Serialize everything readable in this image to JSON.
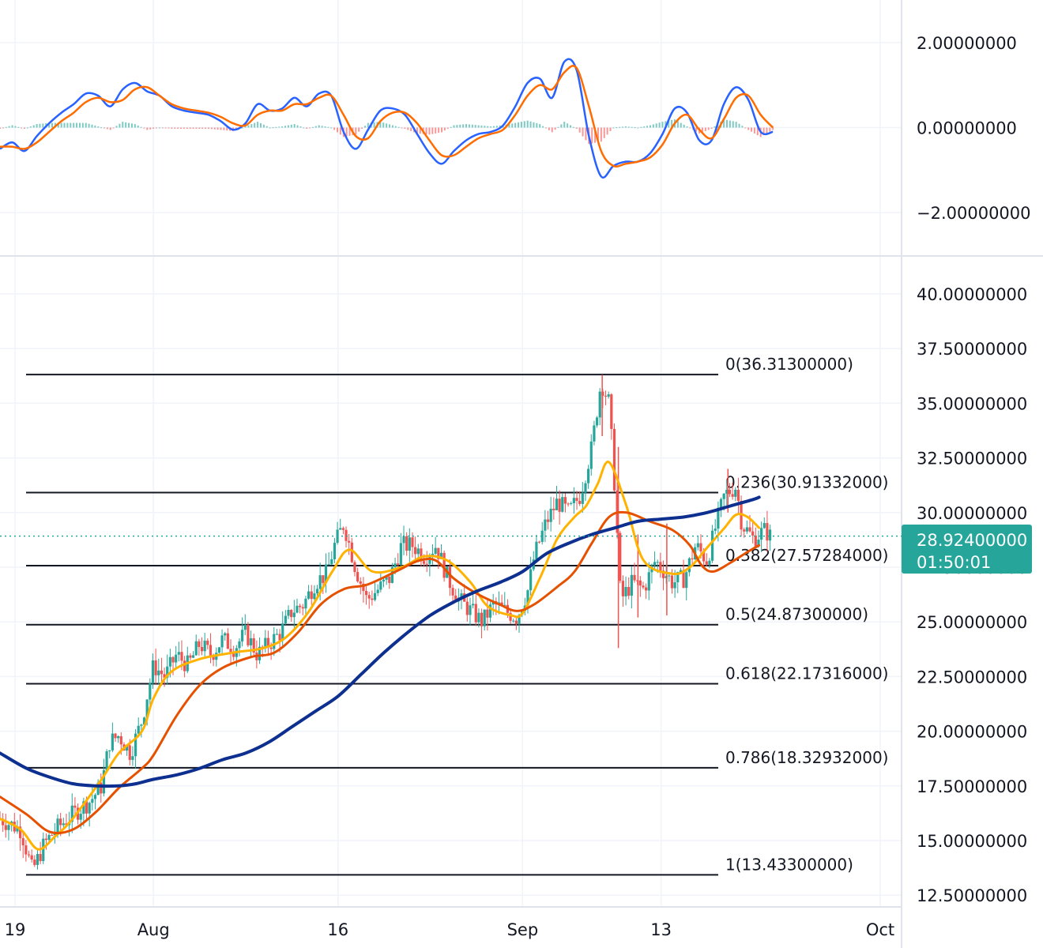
{
  "chart_data": [
    {
      "type": "line",
      "panel": "oscillator",
      "y_axis_ticks": [
        "2.00000000",
        "0.00000000",
        "−2.00000000"
      ],
      "y_axis_values": [
        2,
        0,
        -2
      ],
      "ylim": [
        -3,
        3
      ],
      "grid": true,
      "histogram": {
        "positive_color": "#26a69a",
        "negative_color": "#ef5350",
        "note_values": [
          0.05,
          0.08,
          0.1,
          -0.05,
          -0.1,
          0.12,
          0.2,
          0.15,
          -0.15,
          -0.25,
          0.1,
          0.25,
          0.3,
          -0.2,
          -0.45,
          -0.3,
          0.2,
          0.35,
          -0.35,
          -0.4,
          -0.5,
          -0.2
        ]
      },
      "series": [
        {
          "color": "#2962ff",
          "values": [
            -0.5,
            -0.35,
            -0.55,
            -0.2,
            0.1,
            0.35,
            0.55,
            0.8,
            0.75,
            0.5,
            0.9,
            1.05,
            0.85,
            0.75,
            0.5,
            0.4,
            0.35,
            0.3,
            0.15,
            -0.05,
            0.1,
            0.55,
            0.4,
            0.45,
            0.7,
            0.5,
            0.8,
            0.75,
            -0.1,
            -0.5,
            -0.05,
            0.4,
            0.45,
            0.3,
            -0.15,
            -0.6,
            -0.85,
            -0.55,
            -0.3,
            -0.15,
            -0.1,
            0.05,
            0.5,
            1.05,
            1.15,
            0.7,
            1.55,
            1.35,
            -0.2,
            -1.15,
            -0.9,
            -0.8,
            -0.8,
            -0.6,
            -0.15,
            0.45,
            0.35,
            -0.3,
            -0.3,
            0.55,
            0.95,
            0.65,
            -0.1,
            -0.1
          ]
        },
        {
          "color": "#ff6d00",
          "values": [
            -0.45,
            -0.45,
            -0.5,
            -0.35,
            -0.1,
            0.15,
            0.35,
            0.6,
            0.7,
            0.6,
            0.65,
            0.9,
            0.95,
            0.75,
            0.55,
            0.45,
            0.4,
            0.35,
            0.25,
            0.1,
            0.05,
            0.3,
            0.4,
            0.4,
            0.55,
            0.55,
            0.7,
            0.75,
            0.3,
            -0.2,
            -0.25,
            0.15,
            0.35,
            0.35,
            0.1,
            -0.3,
            -0.65,
            -0.65,
            -0.45,
            -0.25,
            -0.15,
            -0.05,
            0.3,
            0.75,
            1.0,
            0.9,
            1.3,
            1.4,
            0.5,
            -0.55,
            -0.9,
            -0.85,
            -0.8,
            -0.7,
            -0.4,
            0.1,
            0.3,
            -0.05,
            -0.25,
            0.2,
            0.7,
            0.75,
            0.3,
            0.0
          ]
        }
      ]
    },
    {
      "type": "candlestick",
      "panel": "price",
      "y_axis_ticks": [
        "40.00000000",
        "37.50000000",
        "35.00000000",
        "32.50000000",
        "30.00000000",
        "27.50000000",
        "25.00000000",
        "22.50000000",
        "20.00000000",
        "17.50000000",
        "15.00000000",
        "12.50000000"
      ],
      "y_axis_values": [
        40,
        37.5,
        35,
        32.5,
        30,
        27.5,
        25,
        22.5,
        20,
        17.5,
        15,
        12.5
      ],
      "ylim": [
        12.0,
        41.7
      ],
      "grid": true,
      "x_axis_ticks": [
        "19",
        "Aug",
        "16",
        "Sep",
        "13",
        "Oct"
      ],
      "x_axis_days": [
        0,
        12,
        28,
        44,
        56,
        75
      ],
      "current_price": {
        "label": "28.92400000",
        "value": 28.924,
        "countdown": "01:50:01",
        "color": "#26a69a"
      },
      "fibonacci": [
        {
          "label": "0(36.31300000)",
          "value": 36.313
        },
        {
          "label": "0.236(30.91332000)",
          "value": 30.91332
        },
        {
          "label": "0.382(27.57284000)",
          "value": 27.57284
        },
        {
          "label": "0.5(24.87300000)",
          "value": 24.873
        },
        {
          "label": "0.618(22.17316000)",
          "value": 22.17316
        },
        {
          "label": "0.786(18.32932000)",
          "value": 18.32932
        },
        {
          "label": "1(13.43300000)",
          "value": 13.433
        }
      ],
      "close_anchors": [
        [
          -1.3,
          16.0
        ],
        [
          0.5,
          15.5
        ],
        [
          1.5,
          13.6
        ],
        [
          2.5,
          14.8
        ],
        [
          3.5,
          15.5
        ],
        [
          5.0,
          16.2
        ],
        [
          6.5,
          16.8
        ],
        [
          7.5,
          17.5
        ],
        [
          8.2,
          19.5
        ],
        [
          9.0,
          19.8
        ],
        [
          10.0,
          19.0
        ],
        [
          11.0,
          20.5
        ],
        [
          12.0,
          23.0
        ],
        [
          13.0,
          22.5
        ],
        [
          14.0,
          23.5
        ],
        [
          15.0,
          23.0
        ],
        [
          16.0,
          24.0
        ],
        [
          17.0,
          23.5
        ],
        [
          18.0,
          24.2
        ],
        [
          19.0,
          23.8
        ],
        [
          20.0,
          24.5
        ],
        [
          21.0,
          23.5
        ],
        [
          22.0,
          24.0
        ],
        [
          23.0,
          24.5
        ],
        [
          24.0,
          25.5
        ],
        [
          25.0,
          25.8
        ],
        [
          26.0,
          26.8
        ],
        [
          27.0,
          27.2
        ],
        [
          27.7,
          28.5
        ],
        [
          28.5,
          29.5
        ],
        [
          29.5,
          27.5
        ],
        [
          30.5,
          26.0
        ],
        [
          31.5,
          26.5
        ],
        [
          32.5,
          27.0
        ],
        [
          33.5,
          28.5
        ],
        [
          34.5,
          28.5
        ],
        [
          35.5,
          28.0
        ],
        [
          36.5,
          28.5
        ],
        [
          37.5,
          27.0
        ],
        [
          38.5,
          26.0
        ],
        [
          39.5,
          25.5
        ],
        [
          40.5,
          25.0
        ],
        [
          41.5,
          25.8
        ],
        [
          42.5,
          25.5
        ],
        [
          43.5,
          25.2
        ],
        [
          44.5,
          26.5
        ],
        [
          45.0,
          28.0
        ],
        [
          46.0,
          29.5
        ],
        [
          47.0,
          30.5
        ],
        [
          48.0,
          30.0
        ],
        [
          49.0,
          30.8
        ],
        [
          50.0,
          33.0
        ],
        [
          50.8,
          36.0
        ],
        [
          51.5,
          35.0
        ],
        [
          52.0,
          31.0
        ],
        [
          52.5,
          26.0
        ],
        [
          53.5,
          26.8
        ],
        [
          54.5,
          26.5
        ],
        [
          55.5,
          27.8
        ],
        [
          56.0,
          27.5
        ],
        [
          57.0,
          26.8
        ],
        [
          58.0,
          27.0
        ],
        [
          59.0,
          28.5
        ],
        [
          60.0,
          27.8
        ],
        [
          60.8,
          29.5
        ],
        [
          61.5,
          30.8
        ],
        [
          62.5,
          31.2
        ],
        [
          63.0,
          29.5
        ],
        [
          64.0,
          28.8
        ],
        [
          65.0,
          29.2
        ],
        [
          65.5,
          28.9
        ]
      ],
      "series": [
        {
          "color": "#ffb300",
          "anchors": [
            [
              -1.3,
              16.0
            ],
            [
              0.5,
              15.5
            ],
            [
              2.0,
              14.6
            ],
            [
              3.5,
              15.2
            ],
            [
              5.0,
              16.0
            ],
            [
              7.5,
              17.8
            ],
            [
              9.0,
              19.0
            ],
            [
              11.0,
              20.0
            ],
            [
              12.0,
              21.5
            ],
            [
              13.5,
              22.7
            ],
            [
              16.0,
              23.3
            ],
            [
              19.0,
              23.6
            ],
            [
              21.5,
              23.8
            ],
            [
              23.5,
              24.3
            ],
            [
              25.5,
              25.5
            ],
            [
              27.5,
              27.3
            ],
            [
              29.0,
              28.3
            ],
            [
              31.0,
              27.3
            ],
            [
              33.5,
              27.5
            ],
            [
              35.5,
              28.0
            ],
            [
              37.5,
              27.8
            ],
            [
              39.5,
              26.8
            ],
            [
              41.0,
              25.7
            ],
            [
              43.0,
              25.3
            ],
            [
              44.0,
              25.4
            ],
            [
              45.5,
              27.0
            ],
            [
              47.0,
              28.8
            ],
            [
              48.5,
              29.8
            ],
            [
              49.5,
              30.3
            ],
            [
              50.5,
              31.3
            ],
            [
              51.5,
              32.3
            ],
            [
              53.0,
              30.3
            ],
            [
              54.5,
              27.8
            ],
            [
              57.0,
              27.2
            ],
            [
              58.5,
              27.5
            ],
            [
              60.0,
              28.4
            ],
            [
              61.5,
              29.3
            ],
            [
              62.5,
              29.9
            ],
            [
              63.5,
              29.8
            ],
            [
              64.5,
              29.3
            ]
          ]
        },
        {
          "color": "#e65100",
          "anchors": [
            [
              -1.3,
              17.0
            ],
            [
              1.0,
              16.2
            ],
            [
              3.0,
              15.4
            ],
            [
              5.0,
              15.5
            ],
            [
              7.0,
              16.3
            ],
            [
              9.0,
              17.4
            ],
            [
              11.0,
              18.3
            ],
            [
              12.0,
              18.9
            ],
            [
              14.0,
              20.7
            ],
            [
              16.0,
              22.1
            ],
            [
              18.0,
              22.9
            ],
            [
              20.5,
              23.4
            ],
            [
              22.5,
              23.6
            ],
            [
              24.5,
              24.5
            ],
            [
              26.5,
              25.8
            ],
            [
              28.5,
              26.5
            ],
            [
              30.5,
              26.7
            ],
            [
              33.0,
              27.3
            ],
            [
              35.0,
              27.8
            ],
            [
              36.5,
              27.8
            ],
            [
              38.0,
              27.0
            ],
            [
              40.0,
              26.3
            ],
            [
              42.0,
              25.8
            ],
            [
              43.5,
              25.5
            ],
            [
              45.0,
              25.8
            ],
            [
              47.0,
              26.6
            ],
            [
              48.5,
              27.3
            ],
            [
              50.0,
              28.6
            ],
            [
              51.5,
              29.8
            ],
            [
              53.0,
              30.0
            ],
            [
              55.0,
              29.6
            ],
            [
              57.0,
              29.2
            ],
            [
              58.5,
              28.5
            ],
            [
              59.5,
              27.6
            ],
            [
              60.5,
              27.3
            ],
            [
              62.0,
              27.7
            ],
            [
              63.5,
              28.2
            ],
            [
              64.5,
              28.5
            ]
          ]
        },
        {
          "color": "#0d2f8f",
          "anchors": [
            [
              -1.3,
              19.0
            ],
            [
              1.0,
              18.3
            ],
            [
              3.0,
              17.9
            ],
            [
              5.0,
              17.6
            ],
            [
              7.0,
              17.5
            ],
            [
              9.0,
              17.5
            ],
            [
              10.5,
              17.6
            ],
            [
              12.0,
              17.8
            ],
            [
              14.0,
              18.0
            ],
            [
              16.0,
              18.3
            ],
            [
              18.0,
              18.7
            ],
            [
              20.0,
              19.0
            ],
            [
              22.0,
              19.5
            ],
            [
              24.0,
              20.2
            ],
            [
              26.0,
              20.9
            ],
            [
              28.0,
              21.6
            ],
            [
              30.0,
              22.6
            ],
            [
              32.0,
              23.6
            ],
            [
              34.0,
              24.5
            ],
            [
              36.0,
              25.3
            ],
            [
              38.0,
              25.9
            ],
            [
              40.0,
              26.4
            ],
            [
              42.0,
              26.8
            ],
            [
              44.0,
              27.3
            ],
            [
              46.0,
              28.1
            ],
            [
              48.0,
              28.6
            ],
            [
              50.0,
              29.0
            ],
            [
              52.0,
              29.3
            ],
            [
              54.0,
              29.6
            ],
            [
              56.0,
              29.7
            ],
            [
              58.0,
              29.8
            ],
            [
              60.0,
              30.0
            ],
            [
              62.0,
              30.3
            ],
            [
              64.0,
              30.6
            ],
            [
              64.5,
              30.7
            ]
          ]
        }
      ]
    }
  ]
}
